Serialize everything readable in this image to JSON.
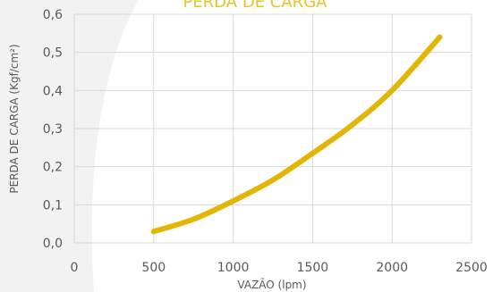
{
  "chart_data": {
    "type": "line",
    "title": "PERDA DE CARGA",
    "xlabel": "VAZÃO (lpm)",
    "ylabel": "PERDA DE CARGA (Kgf/cm²)",
    "xlim": [
      0,
      2500
    ],
    "ylim": [
      0,
      0.6
    ],
    "x_ticks": [
      "0",
      "500",
      "1000",
      "1500",
      "2000",
      "2500"
    ],
    "y_ticks": [
      "0,0",
      "0,1",
      "0,2",
      "0,3",
      "0,4",
      "0,5",
      "0,6"
    ],
    "grid": true,
    "series": [
      {
        "x": [
          500,
          750,
          1000,
          1250,
          1500,
          1750,
          2000,
          2300
        ],
        "y": [
          0.03,
          0.062,
          0.11,
          0.165,
          0.235,
          0.31,
          0.4,
          0.54
        ]
      }
    ]
  },
  "colors": {
    "line": "#E3B505",
    "title": "#E8C22E",
    "grid": "#D9D9D9",
    "background_shape": "#F2F2F2",
    "text": "#595959"
  }
}
